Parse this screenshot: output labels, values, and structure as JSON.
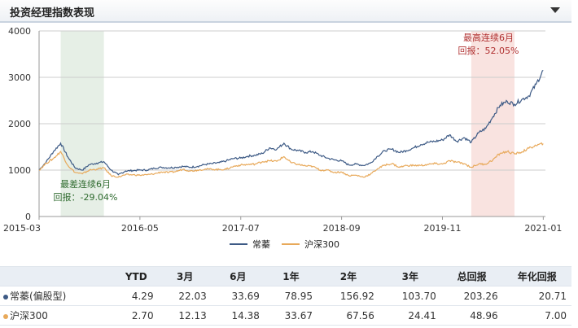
{
  "header": {
    "title": "投资经理指数表现"
  },
  "colors": {
    "series1": "#3d5a85",
    "series2": "#e8a95a",
    "green_band": "#e6efe6",
    "red_band": "#f9e3e0",
    "grid": "#cccccc"
  },
  "annotations": {
    "worst": {
      "line1": "最差连续6月",
      "line2": "回报：-29.04%"
    },
    "best": {
      "line1": "最高连续6月",
      "line2": "回报：52.05%"
    }
  },
  "legend": [
    "常蓁",
    "沪深300"
  ],
  "chart_data": {
    "type": "line",
    "ylim": [
      0,
      4000
    ],
    "y_ticks": [
      "0",
      "1000",
      "2000",
      "3000",
      "4000"
    ],
    "x_ticks": [
      "2015-03",
      "2016-05",
      "2017-07",
      "2018-09",
      "2019-11",
      "2021-01"
    ],
    "grid": true,
    "legend_position": "bottom",
    "shaded_periods": [
      {
        "label": "最差连续6月",
        "start": "2015-06",
        "end": "2015-12"
      },
      {
        "label": "最高连续6月",
        "start": "2020-03",
        "end": "2020-09"
      }
    ],
    "series": [
      {
        "name": "常蓁",
        "points": [
          [
            "2015-03",
            1000
          ],
          [
            "2015-04",
            1180
          ],
          [
            "2015-05",
            1400
          ],
          [
            "2015-06",
            1580
          ],
          [
            "2015-07",
            1280
          ],
          [
            "2015-08",
            1050
          ],
          [
            "2015-09",
            1000
          ],
          [
            "2015-10",
            1120
          ],
          [
            "2015-11",
            1150
          ],
          [
            "2015-12",
            1180
          ],
          [
            "2016-01",
            1000
          ],
          [
            "2016-02",
            900
          ],
          [
            "2016-03",
            980
          ],
          [
            "2016-04",
            990
          ],
          [
            "2016-05",
            1000
          ],
          [
            "2016-06",
            1000
          ],
          [
            "2016-07",
            1040
          ],
          [
            "2016-08",
            1060
          ],
          [
            "2016-09",
            1050
          ],
          [
            "2016-10",
            1060
          ],
          [
            "2016-11",
            1080
          ],
          [
            "2016-12",
            1060
          ],
          [
            "2017-01",
            1080
          ],
          [
            "2017-02",
            1120
          ],
          [
            "2017-03",
            1140
          ],
          [
            "2017-04",
            1160
          ],
          [
            "2017-05",
            1200
          ],
          [
            "2017-06",
            1250
          ],
          [
            "2017-07",
            1260
          ],
          [
            "2017-08",
            1300
          ],
          [
            "2017-09",
            1320
          ],
          [
            "2017-10",
            1360
          ],
          [
            "2017-11",
            1480
          ],
          [
            "2017-12",
            1450
          ],
          [
            "2018-01",
            1580
          ],
          [
            "2018-02",
            1450
          ],
          [
            "2018-03",
            1420
          ],
          [
            "2018-04",
            1380
          ],
          [
            "2018-05",
            1400
          ],
          [
            "2018-06",
            1320
          ],
          [
            "2018-07",
            1260
          ],
          [
            "2018-08",
            1220
          ],
          [
            "2018-09",
            1200
          ],
          [
            "2018-10",
            1110
          ],
          [
            "2018-11",
            1130
          ],
          [
            "2018-12",
            1100
          ],
          [
            "2019-01",
            1150
          ],
          [
            "2019-02",
            1300
          ],
          [
            "2019-03",
            1420
          ],
          [
            "2019-04",
            1450
          ],
          [
            "2019-05",
            1380
          ],
          [
            "2019-06",
            1420
          ],
          [
            "2019-07",
            1480
          ],
          [
            "2019-08",
            1550
          ],
          [
            "2019-09",
            1600
          ],
          [
            "2019-10",
            1620
          ],
          [
            "2019-11",
            1650
          ],
          [
            "2019-12",
            1760
          ],
          [
            "2020-01",
            1620
          ],
          [
            "2020-02",
            1700
          ],
          [
            "2020-03",
            1600
          ],
          [
            "2020-04",
            1800
          ],
          [
            "2020-05",
            1900
          ],
          [
            "2020-06",
            2150
          ],
          [
            "2020-07",
            2400
          ],
          [
            "2020-08",
            2480
          ],
          [
            "2020-09",
            2420
          ],
          [
            "2020-10",
            2520
          ],
          [
            "2020-11",
            2600
          ],
          [
            "2020-12",
            2850
          ],
          [
            "2021-01",
            3150
          ]
        ]
      },
      {
        "name": "沪深300",
        "points": [
          [
            "2015-03",
            1000
          ],
          [
            "2015-04",
            1150
          ],
          [
            "2015-05",
            1250
          ],
          [
            "2015-06",
            1400
          ],
          [
            "2015-07",
            1100
          ],
          [
            "2015-08",
            950
          ],
          [
            "2015-09",
            920
          ],
          [
            "2015-10",
            1000
          ],
          [
            "2015-11",
            1020
          ],
          [
            "2015-12",
            1050
          ],
          [
            "2016-01",
            880
          ],
          [
            "2016-02",
            850
          ],
          [
            "2016-03",
            900
          ],
          [
            "2016-04",
            900
          ],
          [
            "2016-05",
            890
          ],
          [
            "2016-06",
            900
          ],
          [
            "2016-07",
            920
          ],
          [
            "2016-08",
            960
          ],
          [
            "2016-09",
            950
          ],
          [
            "2016-10",
            970
          ],
          [
            "2016-11",
            1020
          ],
          [
            "2016-12",
            980
          ],
          [
            "2017-01",
            1000
          ],
          [
            "2017-02",
            1020
          ],
          [
            "2017-03",
            1020
          ],
          [
            "2017-04",
            1010
          ],
          [
            "2017-05",
            1020
          ],
          [
            "2017-06",
            1080
          ],
          [
            "2017-07",
            1110
          ],
          [
            "2017-08",
            1120
          ],
          [
            "2017-09",
            1130
          ],
          [
            "2017-10",
            1180
          ],
          [
            "2017-11",
            1200
          ],
          [
            "2017-12",
            1190
          ],
          [
            "2018-01",
            1290
          ],
          [
            "2018-02",
            1160
          ],
          [
            "2018-03",
            1120
          ],
          [
            "2018-04",
            1090
          ],
          [
            "2018-05",
            1080
          ],
          [
            "2018-06",
            1000
          ],
          [
            "2018-07",
            1000
          ],
          [
            "2018-08",
            950
          ],
          [
            "2018-09",
            960
          ],
          [
            "2018-10",
            880
          ],
          [
            "2018-11",
            890
          ],
          [
            "2018-12",
            850
          ],
          [
            "2019-01",
            910
          ],
          [
            "2019-02",
            1030
          ],
          [
            "2019-03",
            1110
          ],
          [
            "2019-04",
            1140
          ],
          [
            "2019-05",
            1060
          ],
          [
            "2019-06",
            1100
          ],
          [
            "2019-07",
            1100
          ],
          [
            "2019-08",
            1100
          ],
          [
            "2019-09",
            1120
          ],
          [
            "2019-10",
            1140
          ],
          [
            "2019-11",
            1130
          ],
          [
            "2019-12",
            1200
          ],
          [
            "2020-01",
            1170
          ],
          [
            "2020-02",
            1140
          ],
          [
            "2020-03",
            1060
          ],
          [
            "2020-04",
            1130
          ],
          [
            "2020-05",
            1130
          ],
          [
            "2020-06",
            1220
          ],
          [
            "2020-07",
            1360
          ],
          [
            "2020-08",
            1400
          ],
          [
            "2020-09",
            1350
          ],
          [
            "2020-10",
            1390
          ],
          [
            "2020-11",
            1470
          ],
          [
            "2020-12",
            1530
          ],
          [
            "2021-01",
            1570
          ]
        ]
      }
    ]
  },
  "table": {
    "headers": [
      "",
      "YTD",
      "3月",
      "6月",
      "1年",
      "2年",
      "3年",
      "总回报",
      "年化回报"
    ],
    "rows": [
      {
        "name": "常蓁(偏股型)",
        "values": [
          "4.29",
          "22.03",
          "33.69",
          "78.95",
          "156.92",
          "103.70",
          "203.26",
          "20.71"
        ]
      },
      {
        "name": "沪深300",
        "values": [
          "2.70",
          "12.13",
          "14.38",
          "33.67",
          "67.56",
          "24.41",
          "48.96",
          "7.00"
        ]
      }
    ]
  }
}
